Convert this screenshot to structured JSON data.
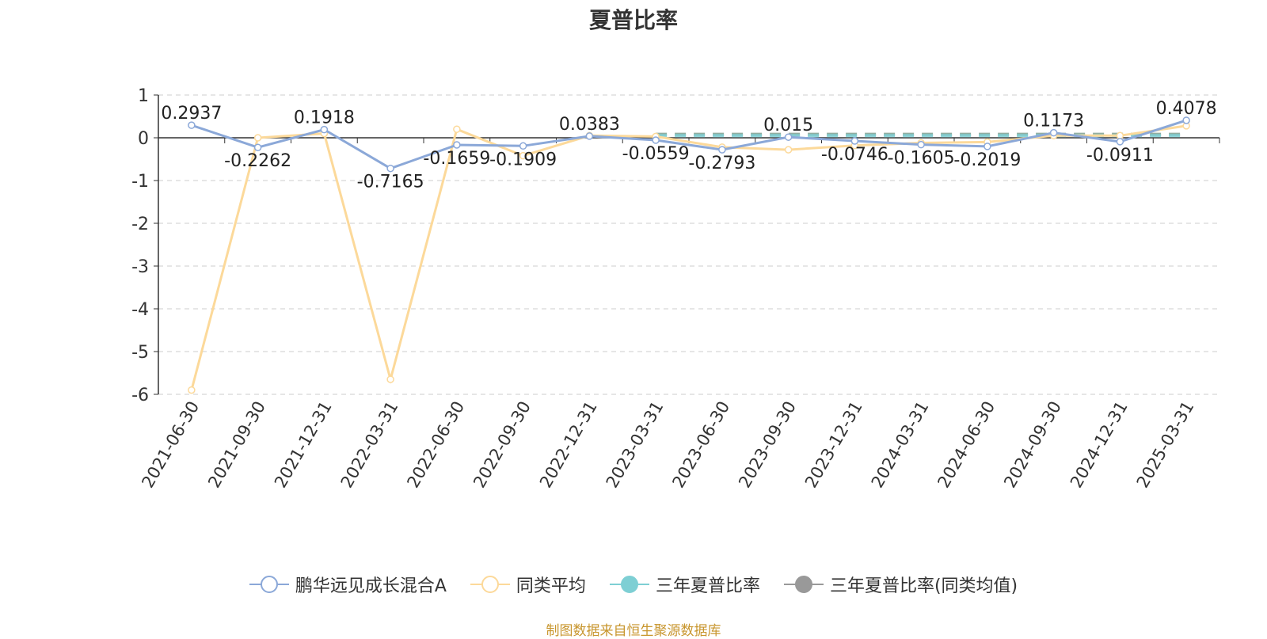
{
  "chart_data": {
    "type": "line",
    "title": "夏普比率",
    "xlabel": "",
    "ylabel": "",
    "ylim": [
      -6,
      1
    ],
    "yticks": [
      1,
      0,
      -1,
      -2,
      -3,
      -4,
      -5,
      -6
    ],
    "grid": true,
    "legend_position": "bottom",
    "categories": [
      "2021-06-30",
      "2021-09-30",
      "2021-12-31",
      "2022-03-31",
      "2022-06-30",
      "2022-09-30",
      "2022-12-31",
      "2023-03-31",
      "2023-06-30",
      "2023-09-30",
      "2023-12-31",
      "2024-03-31",
      "2024-06-30",
      "2024-09-30",
      "2024-12-31",
      "2025-03-31"
    ],
    "series": [
      {
        "name": "鹏华远见成长混合A",
        "color": "#8ba8d8",
        "values": [
          0.2937,
          -0.2262,
          0.1918,
          -0.7165,
          -0.1659,
          -0.1909,
          0.0383,
          -0.0559,
          -0.2793,
          0.015,
          -0.0746,
          -0.1605,
          -0.2019,
          0.1173,
          -0.0911,
          0.4078
        ],
        "labels": [
          "0.2937",
          "-0.2262",
          "0.1918",
          "-0.7165",
          "-0.1659",
          "-0.1909",
          "0.0383",
          "-0.0559",
          "-0.2793",
          "0.015",
          "-0.0746",
          "-0.1605",
          "-0.2019",
          "0.1173",
          "-0.0911",
          "0.4078"
        ]
      },
      {
        "name": "同类平均",
        "color": "#fcd99a",
        "values": [
          -5.9,
          0.0,
          0.1,
          -5.65,
          0.2,
          -0.42,
          0.05,
          0.03,
          -0.22,
          -0.28,
          -0.18,
          -0.12,
          -0.1,
          0.05,
          0.05,
          0.28
        ]
      },
      {
        "name": "三年夏普比率",
        "color": "#7ecfd4",
        "values": [
          null,
          null,
          null,
          null,
          null,
          null,
          null,
          0.05,
          0.05,
          0.05,
          0.05,
          0.05,
          0.05,
          0.05,
          0.05,
          0.05
        ]
      },
      {
        "name": "三年夏普比率(同类均值)",
        "color": "#999999",
        "dash_color": "#7f9f8f",
        "values": [
          null,
          null,
          null,
          null,
          null,
          null,
          null,
          0.08,
          0.08,
          0.08,
          0.08,
          0.08,
          0.08,
          0.08,
          0.08,
          0.08
        ]
      }
    ],
    "source_note": "制图数据来自恒生聚源数据库"
  }
}
